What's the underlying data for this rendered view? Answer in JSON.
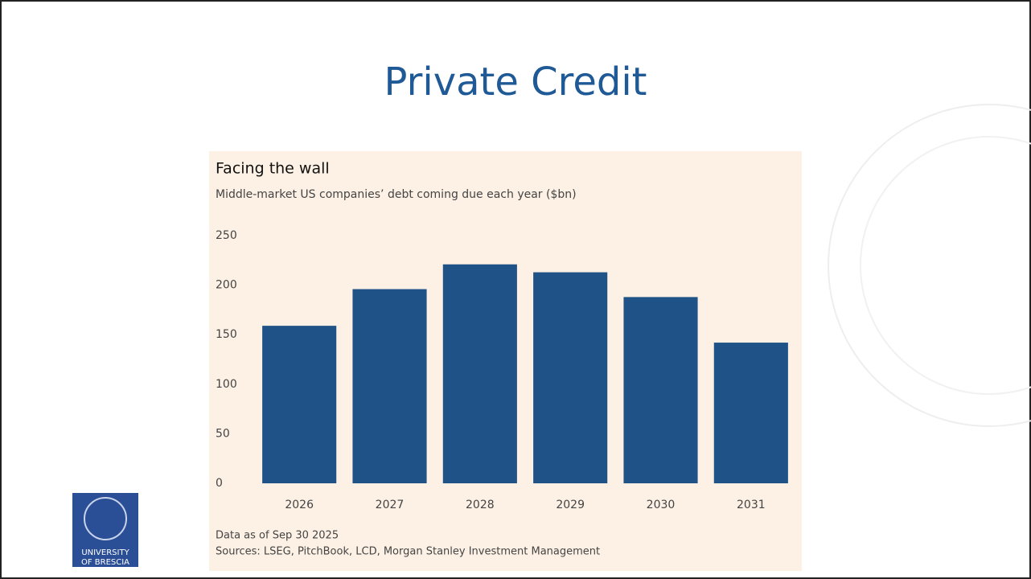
{
  "slide": {
    "title": "Private Credit"
  },
  "chart_data": {
    "type": "bar",
    "title": "Facing the wall",
    "subtitle": "Middle-market US companies’ debt coming due each year ($bn)",
    "categories": [
      "2026",
      "2027",
      "2028",
      "2029",
      "2030",
      "2031"
    ],
    "values": [
      159,
      196,
      221,
      213,
      188,
      142
    ],
    "color": "#1f5286",
    "ylim": [
      0,
      250
    ],
    "yticks": [
      0,
      50,
      100,
      150,
      200,
      250
    ],
    "grid": false,
    "notes": [
      "Data as of Sep 30 2025",
      "Sources: LSEG, PitchBook, LCD, Morgan Stanley Investment Management"
    ]
  },
  "logo": {
    "lines": [
      "UNIVERSITY",
      "OF BRESCIA"
    ]
  }
}
